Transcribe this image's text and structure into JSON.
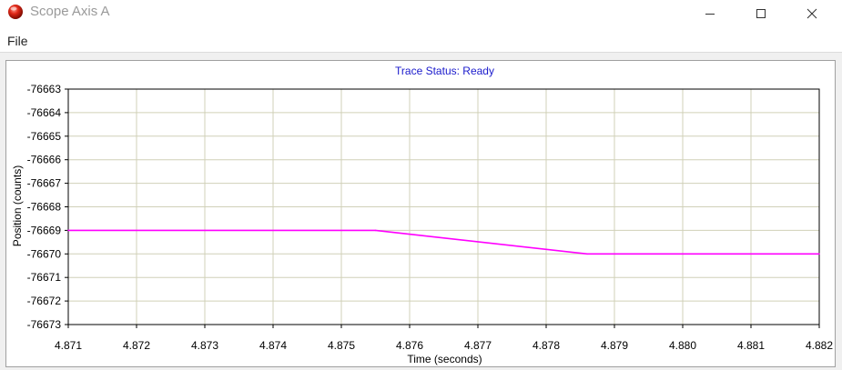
{
  "window": {
    "title": "Scope Axis A",
    "icon": "red-orb-icon",
    "controls": [
      "minimize-icon",
      "maximize-icon",
      "close-icon"
    ]
  },
  "menu": {
    "file_label": "File"
  },
  "chart": {
    "status_label": "Trace Status:  Ready"
  },
  "colors": {
    "trace": "#ff00ff",
    "grid": "#d0d0b8",
    "status_text": "#1a1acc",
    "axis": "#000000"
  },
  "chart_data": {
    "type": "line",
    "title": "Trace Status:  Ready",
    "xlabel": "Time (seconds)",
    "ylabel": "Position (counts)",
    "xlim": [
      4.871,
      4.882
    ],
    "ylim": [
      -76673,
      -76663
    ],
    "x_ticks": [
      "4.871",
      "4.872",
      "4.873",
      "4.874",
      "4.875",
      "4.876",
      "4.877",
      "4.878",
      "4.879",
      "4.880",
      "4.881",
      "4.882"
    ],
    "y_ticks": [
      "-76663",
      "-76664",
      "-76665",
      "-76666",
      "-76667",
      "-76668",
      "-76669",
      "-76670",
      "-76671",
      "-76672",
      "-76673"
    ],
    "grid": true,
    "series": [
      {
        "x": [
          4.871,
          4.8755,
          4.8786,
          4.882
        ],
        "y": [
          -76669,
          -76669,
          -76670,
          -76670
        ]
      }
    ]
  }
}
